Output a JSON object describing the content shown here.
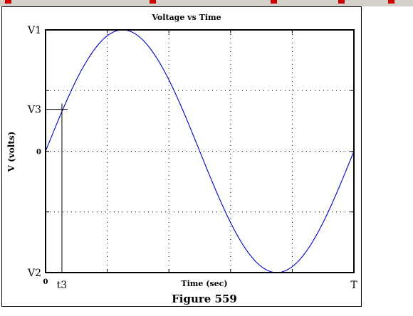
{
  "chart_data": {
    "type": "line",
    "title": "Voltage vs Time",
    "xlabel": "Time (sec)",
    "ylabel": "V (volts)",
    "caption": "Figure 559",
    "x_ticks": [
      {
        "label": "0",
        "value": 0
      },
      {
        "label": "t3",
        "value": 0.053
      },
      {
        "label": "T",
        "value": 1
      }
    ],
    "y_ticks": [
      {
        "label": "V1",
        "value": 1
      },
      {
        "label": "V3",
        "value": 0.345
      },
      {
        "label": "0",
        "value": 0
      },
      {
        "label": "V2",
        "value": -1
      }
    ],
    "xlim": [
      0,
      1
    ],
    "ylim": [
      -1,
      1
    ],
    "grid": true,
    "grid_x": [
      0.2,
      0.4,
      0.6,
      0.8
    ],
    "grid_y": [
      -0.5,
      0,
      0.5
    ],
    "series": [
      {
        "function": "sine",
        "amplitude": 1,
        "phase": 0,
        "cycles": 1,
        "color": "#0000cc"
      }
    ],
    "annotation": {
      "x": 0.053,
      "y": 0.345
    }
  }
}
